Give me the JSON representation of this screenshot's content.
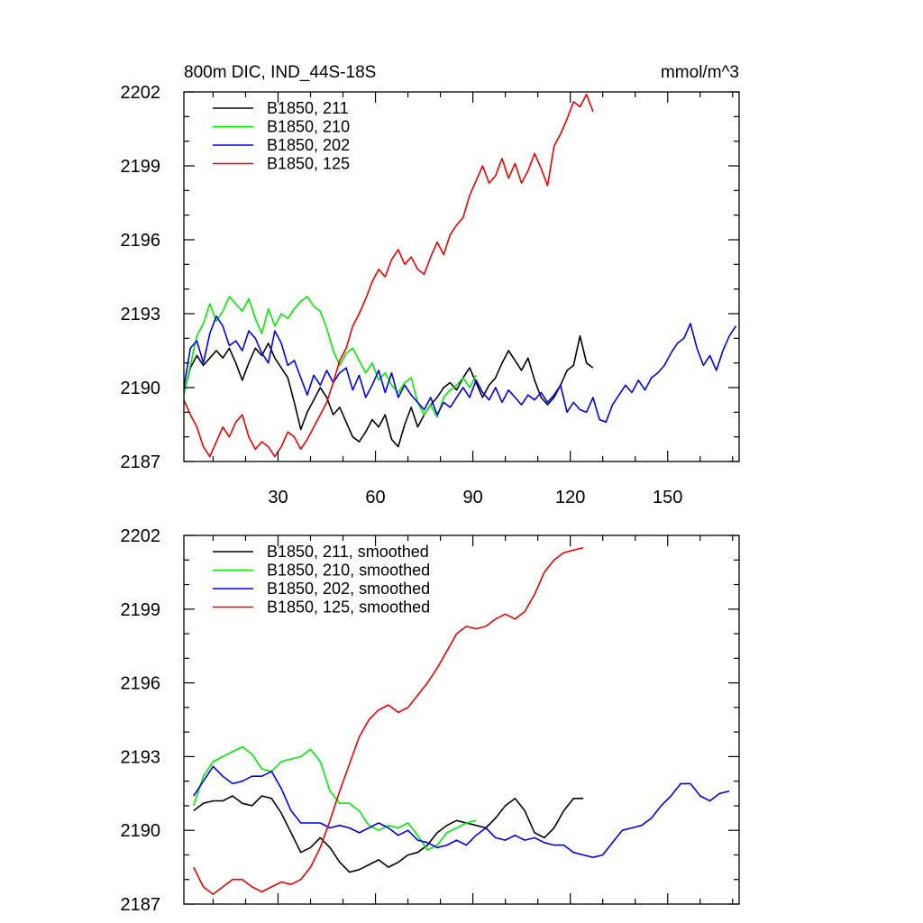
{
  "chart_data": [
    {
      "type": "line",
      "title": "800m DIC, IND_44S-18S",
      "units_label": "mmol/m^3",
      "xlabel": "",
      "ylabel": "",
      "xlim": [
        1,
        172
      ],
      "ylim": [
        2187,
        2202
      ],
      "xticks": [
        30,
        60,
        90,
        120,
        150
      ],
      "yticks": [
        2187,
        2190,
        2193,
        2196,
        2199,
        2202
      ],
      "legend_position": "top-left",
      "grid": false,
      "series": [
        {
          "name": "B1850, 211",
          "color": "#000000",
          "x": [
            1,
            3,
            5,
            7,
            9,
            11,
            13,
            15,
            17,
            19,
            21,
            23,
            25,
            27,
            29,
            31,
            33,
            35,
            37,
            39,
            41,
            43,
            45,
            47,
            49,
            51,
            53,
            55,
            57,
            59,
            61,
            63,
            65,
            67,
            69,
            71,
            73,
            75,
            77,
            79,
            81,
            83,
            85,
            87,
            89,
            91,
            93,
            95,
            97,
            99,
            101,
            103,
            105,
            107,
            109,
            111,
            113,
            115,
            117,
            119,
            121,
            123,
            125,
            127
          ],
          "y": [
            2189.8,
            2190.8,
            2191.3,
            2190.9,
            2191.2,
            2191.5,
            2191.2,
            2191.6,
            2191.0,
            2190.3,
            2191.0,
            2191.6,
            2191.3,
            2191.8,
            2191.2,
            2190.8,
            2190.4,
            2189.4,
            2188.3,
            2189.0,
            2189.5,
            2190.0,
            2189.6,
            2188.9,
            2189.2,
            2188.6,
            2188.0,
            2187.8,
            2188.2,
            2188.7,
            2188.4,
            2188.9,
            2187.9,
            2187.6,
            2188.5,
            2189.2,
            2188.4,
            2188.9,
            2189.3,
            2189.6,
            2190.0,
            2190.2,
            2189.9,
            2190.4,
            2190.8,
            2190.2,
            2189.6,
            2190.1,
            2190.4,
            2191.0,
            2191.5,
            2191.1,
            2190.7,
            2191.2,
            2190.3,
            2189.6,
            2189.3,
            2189.6,
            2190.1,
            2190.7,
            2190.9,
            2192.1,
            2191.0,
            2190.8
          ]
        },
        {
          "name": "B1850, 210",
          "color": "#00ee00",
          "x": [
            1,
            3,
            5,
            7,
            9,
            11,
            13,
            15,
            17,
            19,
            21,
            23,
            25,
            27,
            29,
            31,
            33,
            35,
            37,
            39,
            41,
            43,
            45,
            47,
            49,
            51,
            53,
            55,
            57,
            59,
            61,
            63,
            65,
            67,
            69,
            71,
            73,
            75,
            77,
            79,
            81,
            83,
            85,
            87,
            89,
            91
          ],
          "y": [
            2189.7,
            2190.9,
            2192.1,
            2192.6,
            2193.4,
            2192.7,
            2193.1,
            2193.7,
            2193.4,
            2193.1,
            2193.6,
            2192.8,
            2192.2,
            2193.2,
            2192.5,
            2193.0,
            2192.8,
            2193.2,
            2193.5,
            2193.7,
            2193.3,
            2193.1,
            2192.4,
            2191.5,
            2190.9,
            2191.4,
            2191.6,
            2191.1,
            2190.6,
            2191.0,
            2190.3,
            2190.6,
            2190.1,
            2189.8,
            2190.2,
            2190.4,
            2189.4,
            2188.9,
            2189.3,
            2188.8,
            2189.6,
            2189.9,
            2190.1,
            2190.4,
            2190.0,
            2190.5
          ]
        },
        {
          "name": "B1850, 202",
          "color": "#0000ee",
          "x": [
            1,
            3,
            5,
            7,
            9,
            11,
            13,
            15,
            17,
            19,
            21,
            23,
            25,
            27,
            29,
            31,
            33,
            35,
            37,
            39,
            41,
            43,
            45,
            47,
            49,
            51,
            53,
            55,
            57,
            59,
            61,
            63,
            65,
            67,
            69,
            71,
            73,
            75,
            77,
            79,
            81,
            83,
            85,
            87,
            89,
            91,
            93,
            95,
            97,
            99,
            101,
            103,
            105,
            107,
            109,
            111,
            113,
            115,
            117,
            119,
            121,
            123,
            125,
            127,
            129,
            131,
            133,
            135,
            137,
            139,
            141,
            143,
            145,
            147,
            149,
            151,
            153,
            155,
            157,
            159,
            161,
            163,
            165,
            167,
            169,
            171
          ],
          "y": [
            2190.0,
            2191.6,
            2191.9,
            2191.0,
            2192.2,
            2192.9,
            2192.5,
            2191.7,
            2191.9,
            2191.5,
            2192.3,
            2192.0,
            2191.4,
            2191.0,
            2192.3,
            2191.8,
            2190.9,
            2191.1,
            2190.4,
            2189.7,
            2190.5,
            2190.1,
            2190.7,
            2190.2,
            2190.6,
            2190.8,
            2189.9,
            2190.5,
            2189.6,
            2190.1,
            2190.7,
            2189.8,
            2190.6,
            2189.6,
            2190.1,
            2189.7,
            2189.4,
            2189.1,
            2189.6,
            2188.9,
            2189.4,
            2189.2,
            2189.6,
            2190.0,
            2189.6,
            2190.3,
            2189.8,
            2189.5,
            2190.0,
            2189.4,
            2189.9,
            2189.6,
            2189.3,
            2189.7,
            2189.5,
            2189.8,
            2189.4,
            2189.7,
            2190.1,
            2189.0,
            2189.4,
            2189.1,
            2189.0,
            2189.6,
            2188.7,
            2188.6,
            2189.3,
            2189.7,
            2190.1,
            2189.8,
            2190.3,
            2189.9,
            2190.4,
            2190.6,
            2190.9,
            2191.4,
            2191.8,
            2192.0,
            2192.6,
            2191.6,
            2190.9,
            2191.3,
            2190.7,
            2191.5,
            2192.1,
            2192.5
          ]
        },
        {
          "name": "B1850, 125",
          "color": "#ee0000",
          "x": [
            1,
            3,
            5,
            7,
            9,
            11,
            13,
            15,
            17,
            19,
            21,
            23,
            25,
            27,
            29,
            31,
            33,
            35,
            37,
            39,
            41,
            43,
            45,
            47,
            49,
            51,
            53,
            55,
            57,
            59,
            61,
            63,
            65,
            67,
            69,
            71,
            73,
            75,
            77,
            79,
            81,
            83,
            85,
            87,
            89,
            91,
            93,
            95,
            97,
            99,
            101,
            103,
            105,
            107,
            109,
            111,
            113,
            115,
            117,
            119,
            121,
            123,
            125,
            127
          ],
          "y": [
            2189.5,
            2188.9,
            2188.4,
            2187.6,
            2187.2,
            2187.8,
            2188.4,
            2188.0,
            2188.6,
            2188.9,
            2188.0,
            2187.5,
            2187.8,
            2187.6,
            2187.2,
            2187.6,
            2188.2,
            2188.0,
            2187.5,
            2187.9,
            2188.4,
            2188.9,
            2189.4,
            2190.2,
            2191.1,
            2191.6,
            2192.5,
            2193.0,
            2193.6,
            2194.3,
            2194.8,
            2194.5,
            2195.2,
            2195.6,
            2195.0,
            2195.3,
            2194.8,
            2194.6,
            2195.3,
            2195.9,
            2195.4,
            2196.2,
            2196.6,
            2196.9,
            2197.8,
            2198.4,
            2199.0,
            2198.3,
            2198.6,
            2199.3,
            2198.5,
            2199.1,
            2198.3,
            2198.8,
            2199.5,
            2198.9,
            2198.2,
            2199.8,
            2200.3,
            2200.9,
            2201.6,
            2201.4,
            2201.9,
            2201.2
          ]
        }
      ]
    },
    {
      "type": "line",
      "title": "",
      "xlabel": "",
      "ylabel": "",
      "xlim": [
        1,
        172
      ],
      "ylim": [
        2187,
        2202
      ],
      "xticks": [
        30,
        60,
        90,
        120,
        150
      ],
      "yticks": [
        2187,
        2190,
        2193,
        2196,
        2199,
        2202
      ],
      "legend_position": "top-left",
      "grid": false,
      "series": [
        {
          "name": "B1850, 211, smoothed",
          "color": "#000000",
          "x": [
            4,
            7,
            10,
            13,
            16,
            19,
            22,
            25,
            28,
            31,
            34,
            37,
            40,
            43,
            46,
            49,
            52,
            55,
            58,
            61,
            64,
            67,
            70,
            73,
            76,
            79,
            82,
            85,
            88,
            91,
            94,
            97,
            100,
            103,
            106,
            109,
            112,
            115,
            118,
            121,
            124
          ],
          "y": [
            2190.8,
            2191.1,
            2191.2,
            2191.2,
            2191.4,
            2191.1,
            2191.0,
            2191.4,
            2191.3,
            2190.7,
            2189.9,
            2189.1,
            2189.3,
            2189.7,
            2189.3,
            2188.7,
            2188.3,
            2188.4,
            2188.6,
            2188.8,
            2188.5,
            2188.7,
            2189.0,
            2189.1,
            2189.4,
            2189.9,
            2190.2,
            2190.4,
            2190.3,
            2190.2,
            2190.1,
            2190.5,
            2191.0,
            2191.3,
            2190.8,
            2189.9,
            2189.7,
            2190.1,
            2190.8,
            2191.3,
            2191.3
          ]
        },
        {
          "name": "B1850, 210, smoothed",
          "color": "#00ee00",
          "x": [
            4,
            7,
            10,
            13,
            16,
            19,
            22,
            25,
            28,
            31,
            34,
            37,
            40,
            43,
            46,
            49,
            52,
            55,
            58,
            61,
            64,
            67,
            70,
            73,
            76,
            79,
            82,
            85,
            88,
            91
          ],
          "y": [
            2191.0,
            2192.2,
            2192.8,
            2193.0,
            2193.2,
            2193.4,
            2193.1,
            2192.5,
            2192.4,
            2192.8,
            2192.9,
            2193.0,
            2193.3,
            2192.8,
            2191.6,
            2191.1,
            2191.1,
            2190.8,
            2190.2,
            2190.0,
            2190.2,
            2190.1,
            2190.3,
            2189.8,
            2189.2,
            2189.4,
            2189.9,
            2190.1,
            2190.3,
            2190.4
          ]
        },
        {
          "name": "B1850, 202, smoothed",
          "color": "#0000ee",
          "x": [
            4,
            7,
            10,
            13,
            16,
            19,
            22,
            25,
            28,
            31,
            34,
            37,
            40,
            43,
            46,
            49,
            52,
            55,
            58,
            61,
            64,
            67,
            70,
            73,
            76,
            79,
            82,
            85,
            88,
            91,
            94,
            97,
            100,
            103,
            106,
            109,
            112,
            115,
            118,
            121,
            124,
            127,
            130,
            133,
            136,
            139,
            142,
            145,
            148,
            151,
            154,
            157,
            160,
            163,
            166,
            169
          ],
          "y": [
            2191.4,
            2192.0,
            2192.6,
            2192.2,
            2191.9,
            2192.0,
            2192.2,
            2192.2,
            2192.4,
            2191.7,
            2190.8,
            2190.3,
            2190.3,
            2190.3,
            2190.1,
            2190.2,
            2190.1,
            2189.9,
            2190.1,
            2190.3,
            2190.1,
            2189.8,
            2190.0,
            2189.6,
            2189.5,
            2189.3,
            2189.4,
            2189.6,
            2189.4,
            2189.8,
            2190.1,
            2189.7,
            2189.6,
            2189.8,
            2189.6,
            2189.7,
            2189.5,
            2189.4,
            2189.4,
            2189.1,
            2189.0,
            2188.9,
            2189.0,
            2189.5,
            2190.0,
            2190.1,
            2190.2,
            2190.5,
            2191.0,
            2191.4,
            2191.9,
            2191.9,
            2191.4,
            2191.2,
            2191.5,
            2191.6
          ]
        },
        {
          "name": "B1850, 125, smoothed",
          "color": "#ee0000",
          "x": [
            4,
            7,
            10,
            13,
            16,
            19,
            22,
            25,
            28,
            31,
            34,
            37,
            40,
            43,
            46,
            49,
            52,
            55,
            58,
            61,
            64,
            67,
            70,
            73,
            76,
            79,
            82,
            85,
            88,
            91,
            94,
            97,
            100,
            103,
            106,
            109,
            112,
            115,
            118,
            121,
            124
          ],
          "y": [
            2188.5,
            2187.7,
            2187.4,
            2187.7,
            2188.0,
            2188.0,
            2187.7,
            2187.5,
            2187.7,
            2187.9,
            2187.8,
            2188.0,
            2188.5,
            2189.3,
            2190.4,
            2191.6,
            2192.7,
            2193.8,
            2194.5,
            2194.9,
            2195.1,
            2194.8,
            2195.0,
            2195.5,
            2196.0,
            2196.6,
            2197.3,
            2198.0,
            2198.3,
            2198.2,
            2198.3,
            2198.6,
            2198.8,
            2198.6,
            2198.9,
            2199.6,
            2200.5,
            2201.0,
            2201.3,
            2201.4,
            2201.5
          ]
        }
      ]
    }
  ]
}
